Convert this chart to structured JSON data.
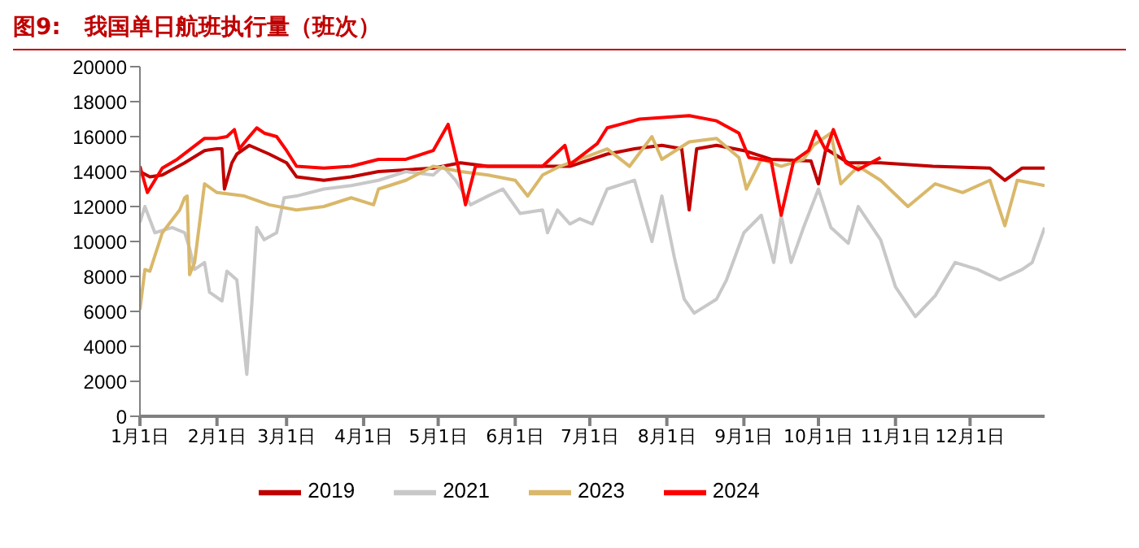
{
  "chart_data": {
    "type": "line",
    "title": "图9:   我国单日航班执行量（班次）",
    "xlim": [
      "--01-01",
      "--12-31"
    ],
    "xticks": [
      {
        "value": "--01-01",
        "label": "1月1日"
      },
      {
        "value": "--02-01",
        "label": "2月1日"
      },
      {
        "value": "--03-01",
        "label": "3月1日"
      },
      {
        "value": "--04-01",
        "label": "4月1日"
      },
      {
        "value": "--05-01",
        "label": "5月1日"
      },
      {
        "value": "--06-01",
        "label": "6月1日"
      },
      {
        "value": "--07-01",
        "label": "7月1日"
      },
      {
        "value": "--08-01",
        "label": "8月1日"
      },
      {
        "value": "--09-01",
        "label": "9月1日"
      },
      {
        "value": "--10-01",
        "label": "10月1日"
      },
      {
        "value": "--11-01",
        "label": "11月1日"
      },
      {
        "value": "--12-01",
        "label": "12月1日"
      }
    ],
    "ylim": [
      0,
      20000
    ],
    "yticks": [
      0,
      2000,
      4000,
      6000,
      8000,
      10000,
      12000,
      14000,
      16000,
      18000,
      20000
    ],
    "legend": "bottom",
    "marker": "none",
    "line_style": "solid",
    "series": [
      {
        "name": "2019",
        "color": "#c00000",
        "x": [
          "--01-01",
          "--01-05",
          "--01-10",
          "--01-19",
          "--01-27",
          "--02-01",
          "--02-03",
          "--02-04",
          "--02-07",
          "--02-09",
          "--02-14",
          "--02-22",
          "--03-01",
          "--03-05",
          "--03-16",
          "--03-27",
          "--04-07",
          "--04-29",
          "--05-10",
          "--05-21",
          "--06-01",
          "--06-12",
          "--06-23",
          "--07-08",
          "--07-19",
          "--07-30",
          "--08-07",
          "--08-10",
          "--08-13",
          "--08-21",
          "--09-01",
          "--09-12",
          "--09-28",
          "--10-01",
          "--10-04",
          "--10-13",
          "--10-26",
          "--11-16",
          "--12-09",
          "--12-15",
          "--12-22",
          "--12-31"
        ],
        "values": [
          14000,
          13700,
          13800,
          14500,
          15200,
          15300,
          15300,
          13000,
          14500,
          15000,
          15500,
          15000,
          14500,
          13700,
          13500,
          13700,
          14000,
          14200,
          14500,
          14300,
          14300,
          14300,
          14300,
          15000,
          15300,
          15500,
          15300,
          11800,
          15300,
          15500,
          15200,
          14700,
          14600,
          13300,
          15300,
          14500,
          14500,
          14300,
          14200,
          13500,
          14200,
          14200
        ]
      },
      {
        "name": "2021",
        "color": "#c8c8c8",
        "x": [
          "--01-01",
          "--01-03",
          "--01-07",
          "--01-14",
          "--01-19",
          "--01-21",
          "--01-23",
          "--01-27",
          "--01-29",
          "--02-03",
          "--02-05",
          "--02-09",
          "--02-13",
          "--02-15",
          "--02-17",
          "--02-20",
          "--02-25",
          "--02-28",
          "--03-05",
          "--03-16",
          "--03-27",
          "--04-07",
          "--04-18",
          "--04-29",
          "--05-03",
          "--05-08",
          "--05-14",
          "--05-21",
          "--05-27",
          "--06-03",
          "--06-12",
          "--06-14",
          "--06-18",
          "--06-23",
          "--06-27",
          "--07-02",
          "--07-08",
          "--07-19",
          "--07-26",
          "--07-30",
          "--08-04",
          "--08-08",
          "--08-12",
          "--08-21",
          "--08-25",
          "--09-01",
          "--09-08",
          "--09-13",
          "--09-16",
          "--09-20",
          "--09-25",
          "--10-01",
          "--10-06",
          "--10-13",
          "--10-17",
          "--10-26",
          "--11-01",
          "--11-09",
          "--11-17",
          "--11-25",
          "--12-04",
          "--12-13",
          "--12-22",
          "--12-26",
          "--12-31"
        ],
        "values": [
          11100,
          12000,
          10500,
          10800,
          10500,
          9600,
          8400,
          8800,
          7100,
          6600,
          8300,
          7800,
          2400,
          6400,
          10800,
          10100,
          10500,
          12500,
          12600,
          13000,
          13200,
          13500,
          14000,
          13800,
          14300,
          13500,
          12100,
          12600,
          13000,
          11600,
          11800,
          10500,
          11800,
          11000,
          11300,
          11000,
          13000,
          13500,
          10000,
          12600,
          9100,
          6700,
          5900,
          6700,
          7800,
          10500,
          11500,
          8800,
          11500,
          8800,
          10800,
          13000,
          10800,
          9900,
          12000,
          10100,
          7400,
          5700,
          6900,
          8800,
          8400,
          7800,
          8400,
          8800,
          10800
        ]
      },
      {
        "name": "2023",
        "color": "#d9b86a",
        "x": [
          "--01-01",
          "--01-03",
          "--01-05",
          "--01-10",
          "--01-17",
          "--01-19",
          "--01-20",
          "--01-21",
          "--01-23",
          "--01-27",
          "--02-01",
          "--02-12",
          "--02-22",
          "--03-05",
          "--03-16",
          "--03-27",
          "--04-05",
          "--04-07",
          "--04-18",
          "--04-29",
          "--05-10",
          "--05-21",
          "--06-01",
          "--06-06",
          "--06-12",
          "--06-19",
          "--06-27",
          "--07-08",
          "--07-17",
          "--07-26",
          "--07-30",
          "--08-10",
          "--08-21",
          "--08-30",
          "--09-02",
          "--09-08",
          "--09-16",
          "--09-25",
          "--09-29",
          "--10-06",
          "--10-10",
          "--10-17",
          "--10-26",
          "--11-06",
          "--11-17",
          "--11-28",
          "--12-09",
          "--12-15",
          "--12-20",
          "--12-31"
        ],
        "values": [
          6100,
          8400,
          8300,
          10500,
          11800,
          12500,
          12600,
          8100,
          8800,
          13300,
          12800,
          12600,
          12100,
          11800,
          12000,
          12500,
          12100,
          13000,
          13500,
          14300,
          14000,
          13800,
          13500,
          12600,
          13800,
          14300,
          14700,
          15300,
          14300,
          16000,
          14700,
          15700,
          15900,
          14800,
          13000,
          14700,
          14300,
          14700,
          15500,
          16200,
          13300,
          14300,
          13500,
          12000,
          13300,
          12800,
          13500,
          10900,
          13500,
          13200
        ]
      },
      {
        "name": "2024",
        "color": "#ff0000",
        "x": [
          "--01-01",
          "--01-04",
          "--01-10",
          "--01-16",
          "--01-27",
          "--02-01",
          "--02-05",
          "--02-08",
          "--02-10",
          "--02-14",
          "--02-17",
          "--02-20",
          "--02-25",
          "--03-01",
          "--03-05",
          "--03-16",
          "--03-27",
          "--04-07",
          "--04-18",
          "--04-29",
          "--05-05",
          "--05-09",
          "--05-12",
          "--05-16",
          "--06-01",
          "--06-12",
          "--06-21",
          "--06-23",
          "--07-04",
          "--07-08",
          "--07-21",
          "--08-10",
          "--08-21",
          "--08-30",
          "--09-03",
          "--09-12",
          "--09-16",
          "--09-21",
          "--09-27",
          "--09-30",
          "--10-04",
          "--10-07",
          "--10-12",
          "--10-17",
          "--10-26"
        ],
        "values": [
          14300,
          12800,
          14200,
          14700,
          15900,
          15900,
          16000,
          16400,
          15300,
          16000,
          16500,
          16200,
          16000,
          15200,
          14300,
          14200,
          14300,
          14700,
          14700,
          15200,
          16700,
          14300,
          12100,
          14300,
          14300,
          14300,
          15500,
          14400,
          15600,
          16500,
          17000,
          17200,
          16900,
          16200,
          14800,
          14600,
          11500,
          14600,
          15200,
          16300,
          15200,
          16400,
          14500,
          14100,
          14800
        ]
      }
    ]
  }
}
